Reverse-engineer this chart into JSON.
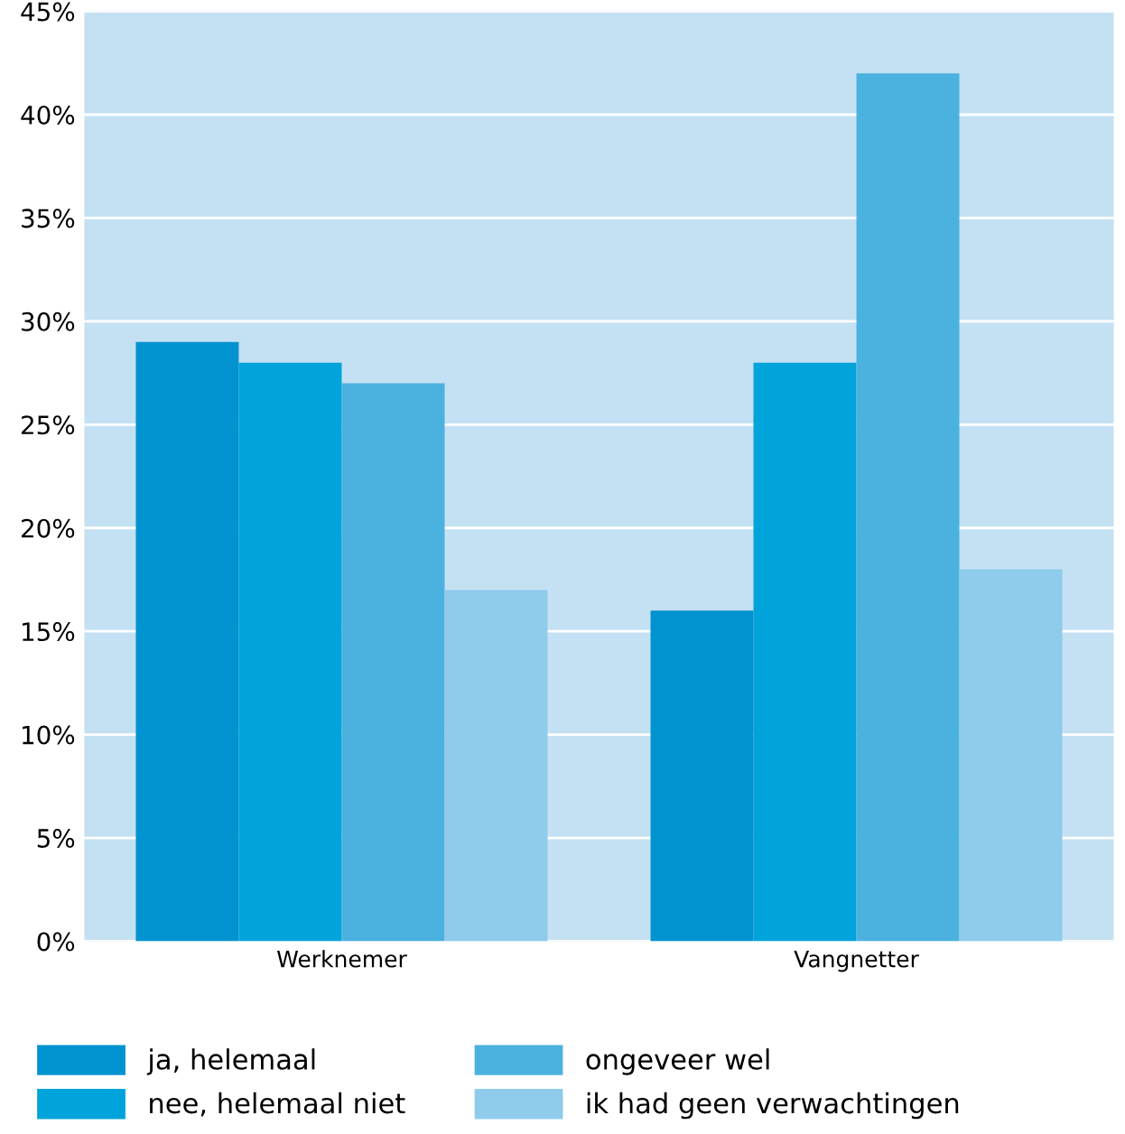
{
  "chart_data": {
    "type": "bar",
    "categories": [
      "Werknemer",
      "Vangnetter"
    ],
    "series": [
      {
        "name": "ja, helemaal",
        "color": "#0093d0",
        "values": [
          29,
          16
        ]
      },
      {
        "name": "nee, helemaal niet",
        "color": "#00a3da",
        "values": [
          28,
          28
        ]
      },
      {
        "name": "ongeveer wel",
        "color": "#4bb2e0",
        "values": [
          27,
          42
        ]
      },
      {
        "name": "ik had geen verwachtingen",
        "color": "#8fcbeb",
        "values": [
          17,
          18
        ]
      }
    ],
    "ylim": [
      0,
      45
    ],
    "yticks": [
      {
        "value": 0,
        "label": "0%"
      },
      {
        "value": 5,
        "label": "5%"
      },
      {
        "value": 10,
        "label": "10%"
      },
      {
        "value": 15,
        "label": "15%"
      },
      {
        "value": 20,
        "label": "20%"
      },
      {
        "value": 25,
        "label": "25%"
      },
      {
        "value": 30,
        "label": "30%"
      },
      {
        "value": 35,
        "label": "35%"
      },
      {
        "value": 40,
        "label": "40%"
      },
      {
        "value": 45,
        "label": "45%"
      }
    ],
    "grid": "y",
    "legend": "bottom"
  }
}
